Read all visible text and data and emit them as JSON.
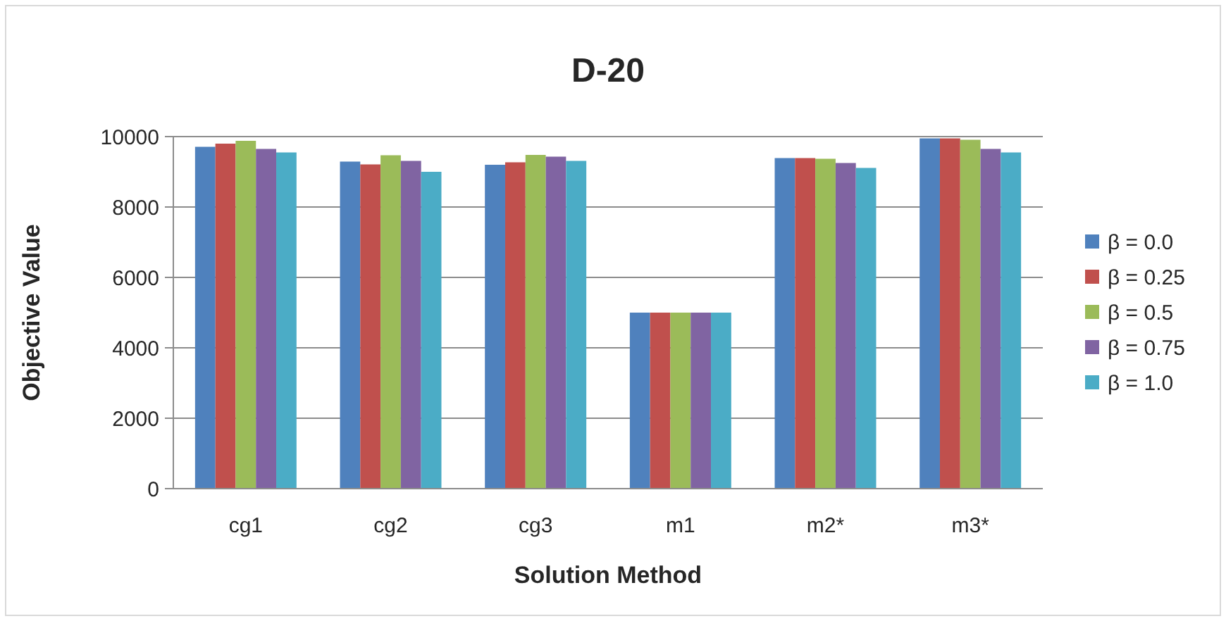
{
  "chart_data": {
    "type": "bar",
    "title": "D-20",
    "xlabel": "Solution Method",
    "ylabel": "Objective Value",
    "categories": [
      "cg1",
      "cg2",
      "cg3",
      "m1",
      "m2*",
      "m3*"
    ],
    "series": [
      {
        "name": "β = 0.0",
        "color": "#4f81bd",
        "values": [
          9710,
          9290,
          9200,
          5000,
          9390,
          9950
        ]
      },
      {
        "name": "β = 0.25",
        "color": "#c0504d",
        "values": [
          9800,
          9210,
          9270,
          5000,
          9390,
          9950
        ]
      },
      {
        "name": "β = 0.5",
        "color": "#9bbb59",
        "values": [
          9880,
          9470,
          9480,
          5000,
          9370,
          9910
        ]
      },
      {
        "name": "β = 0.75",
        "color": "#8064a2",
        "values": [
          9650,
          9310,
          9430,
          5000,
          9250,
          9650
        ]
      },
      {
        "name": "β = 1.0",
        "color": "#4bacc6",
        "values": [
          9550,
          9000,
          9310,
          5000,
          9110,
          9550
        ]
      }
    ],
    "ylim": [
      0,
      10000
    ],
    "yticks": [
      0,
      2000,
      4000,
      6000,
      8000,
      10000
    ],
    "grid": "y",
    "legend": "right"
  }
}
